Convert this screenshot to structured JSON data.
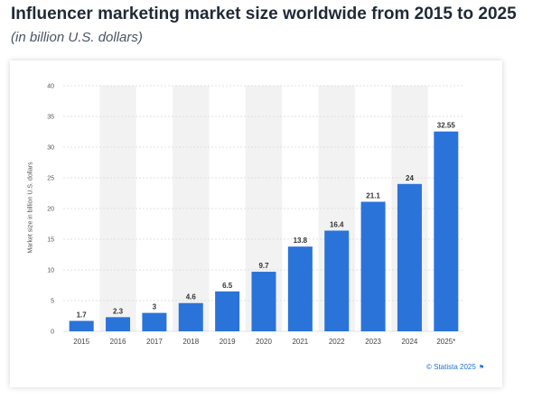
{
  "header": {
    "title": "Influencer marketing market size worldwide from 2015 to 2025",
    "subtitle": "(in billion U.S. dollars)"
  },
  "source": {
    "credit": "© Statista 2025",
    "flag_icon": "flag-icon"
  },
  "colors": {
    "bar": "#2a73d9",
    "band": "#f2f2f2",
    "grid": "#d9d9d9"
  },
  "chart_data": {
    "type": "bar",
    "categories": [
      "2015",
      "2016",
      "2017",
      "2018",
      "2019",
      "2020",
      "2021",
      "2022",
      "2023",
      "2024",
      "2025*"
    ],
    "values": [
      1.7,
      2.3,
      3,
      4.6,
      6.5,
      9.7,
      13.8,
      16.4,
      21.1,
      24,
      32.55
    ],
    "value_labels": [
      "1.7",
      "2.3",
      "3",
      "4.6",
      "6.5",
      "9.7",
      "13.8",
      "16.4",
      "21.1",
      "24",
      "32.55"
    ],
    "ylabel": "Market size in billion U.S. dollars",
    "xlabel": "",
    "ylim": [
      0,
      40
    ],
    "yticks": [
      0,
      5,
      10,
      15,
      20,
      25,
      30,
      35,
      40
    ],
    "grid": true,
    "legend": "none"
  }
}
